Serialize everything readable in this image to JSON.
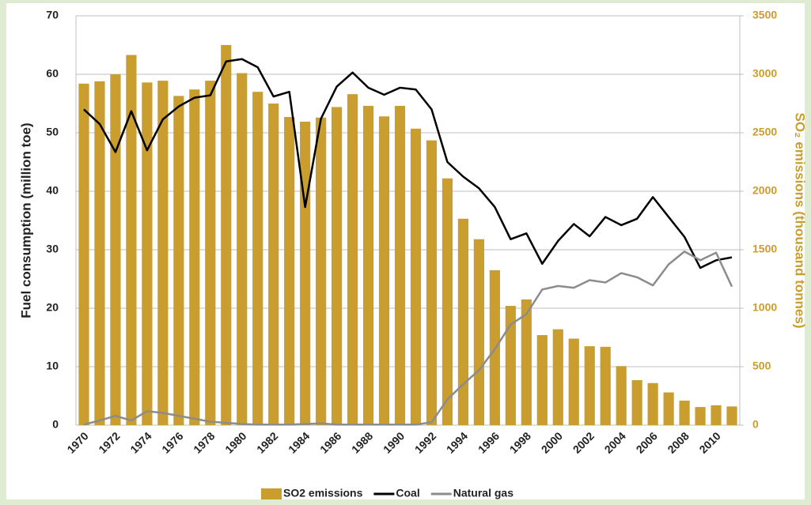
{
  "chart_data": {
    "type": "bar-line",
    "categories": [
      "1970",
      null,
      "1972",
      null,
      "1974",
      null,
      "1976",
      null,
      "1978",
      null,
      "1980",
      null,
      "1982",
      null,
      "1984",
      null,
      "1986",
      null,
      "1988",
      null,
      "1990",
      null,
      "1992",
      null,
      "1994",
      null,
      "1996",
      null,
      "1998",
      null,
      "2000",
      null,
      "2002",
      null,
      "2004",
      null,
      "2006",
      null,
      "2008",
      null,
      "2010",
      null
    ],
    "ylabel": "Fuel consumption (million toe)",
    "y2label": "SO₂ emissions (thousand tonnes)",
    "ylim": [
      0,
      70
    ],
    "yticks": [
      0,
      10,
      20,
      30,
      40,
      50,
      60,
      70
    ],
    "y2lim": [
      0,
      3500
    ],
    "y2ticks": [
      0,
      500,
      1000,
      1500,
      2000,
      2500,
      3000,
      3500
    ],
    "grid": true,
    "legend": "bottom",
    "series": [
      {
        "name": "SO2 emissions",
        "type": "bar",
        "axis": "y2",
        "color": "#c99d2e",
        "values": [
          2920,
          2940,
          3000,
          3165,
          2930,
          2945,
          2815,
          2870,
          2945,
          3250,
          3010,
          2850,
          2750,
          2635,
          2595,
          2630,
          2720,
          2830,
          2730,
          2640,
          2730,
          2535,
          2435,
          2110,
          1765,
          1590,
          1325,
          1020,
          1075,
          770,
          820,
          740,
          675,
          670,
          505,
          385,
          360,
          280,
          210,
          155,
          170,
          160
        ]
      },
      {
        "name": "Coal",
        "type": "line",
        "color": "#000000",
        "values": [
          54,
          51.5,
          46.7,
          53.7,
          47,
          52.3,
          54.5,
          56,
          56.4,
          62.2,
          62.6,
          61.2,
          56.2,
          57,
          37.3,
          52.4,
          57.9,
          60.3,
          57.7,
          56.5,
          57.7,
          57.4,
          54,
          45,
          42.5,
          40.5,
          37.3,
          31.8,
          32.8,
          27.6,
          31.5,
          34.4,
          32.3,
          35.6,
          34.2,
          35.3,
          39,
          35.6,
          32.2,
          26.9,
          28.2,
          28.7
        ]
      },
      {
        "name": "Natural gas",
        "type": "line",
        "color": "#8c8c8c",
        "values": [
          0.1,
          0.8,
          1.6,
          0.8,
          2.4,
          2.1,
          1.6,
          1.1,
          0.6,
          0.4,
          0.2,
          0.1,
          0.1,
          0.1,
          0.2,
          0.3,
          0.1,
          0.1,
          0.1,
          0.1,
          0.1,
          0.1,
          0.5,
          4.4,
          7,
          9.4,
          13,
          17.2,
          19,
          23.2,
          23.8,
          23.5,
          24.8,
          24.4,
          26,
          25.3,
          23.9,
          27.5,
          29.7,
          28.2,
          29.5,
          23.7
        ]
      }
    ]
  }
}
